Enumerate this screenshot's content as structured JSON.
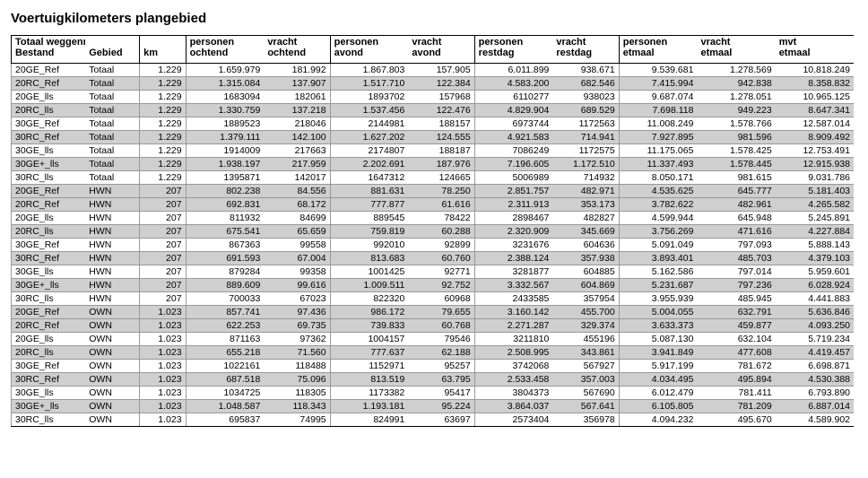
{
  "title": "Voertuigkilometers plangebied",
  "headers": {
    "bestand_top": "Totaal weggennet",
    "bestand": "Bestand",
    "gebied": "Gebied",
    "km": "km",
    "pers_ochtend": "personen ochtend",
    "vracht_ochtend": "vracht ochtend",
    "pers_avond": "personen avond",
    "vracht_avond": "vracht avond",
    "pers_restdag": "personen restdag",
    "vracht_restdag": "vracht restdag",
    "pers_etmaal": "personen etmaal",
    "vracht_etmaal": "vracht etmaal",
    "mvt_etmaal": "mvt etmaal"
  },
  "rows": [
    {
      "b": "20GE_Ref",
      "g": "Totaal",
      "km": "1.229",
      "po": "1.659.979",
      "vo": "181.992",
      "pa": "1.867.803",
      "va": "157.905",
      "pr": "6.011.899",
      "vr": "938.671",
      "pe": "9.539.681",
      "ve": "1.278.569",
      "me": "10.818.249",
      "shade": false
    },
    {
      "b": "20RC_Ref",
      "g": "Totaal",
      "km": "1.229",
      "po": "1.315.084",
      "vo": "137.907",
      "pa": "1.517.710",
      "va": "122.384",
      "pr": "4.583.200",
      "vr": "682.546",
      "pe": "7.415.994",
      "ve": "942.838",
      "me": "8.358.832",
      "shade": true
    },
    {
      "b": "20GE_lls",
      "g": "Totaal",
      "km": "1.229",
      "po": "1683094",
      "vo": "182061",
      "pa": "1893702",
      "va": "157968",
      "pr": "6110277",
      "vr": "938023",
      "pe": "9.687.074",
      "ve": "1.278.051",
      "me": "10.965.125",
      "shade": false
    },
    {
      "b": "20RC_lls",
      "g": "Totaal",
      "km": "1.229",
      "po": "1.330.759",
      "vo": "137.218",
      "pa": "1.537.456",
      "va": "122.476",
      "pr": "4.829.904",
      "vr": "689.529",
      "pe": "7.698.118",
      "ve": "949.223",
      "me": "8.647.341",
      "shade": true
    },
    {
      "b": "30GE_Ref",
      "g": "Totaal",
      "km": "1.229",
      "po": "1889523",
      "vo": "218046",
      "pa": "2144981",
      "va": "188157",
      "pr": "6973744",
      "vr": "1172563",
      "pe": "11.008.249",
      "ve": "1.578.766",
      "me": "12.587.014",
      "shade": false
    },
    {
      "b": "30RC_Ref",
      "g": "Totaal",
      "km": "1.229",
      "po": "1.379.111",
      "vo": "142.100",
      "pa": "1.627.202",
      "va": "124.555",
      "pr": "4.921.583",
      "vr": "714.941",
      "pe": "7.927.895",
      "ve": "981.596",
      "me": "8.909.492",
      "shade": true
    },
    {
      "b": "30GE_lls",
      "g": "Totaal",
      "km": "1.229",
      "po": "1914009",
      "vo": "217663",
      "pa": "2174807",
      "va": "188187",
      "pr": "7086249",
      "vr": "1172575",
      "pe": "11.175.065",
      "ve": "1.578.425",
      "me": "12.753.491",
      "shade": false
    },
    {
      "b": "30GE+_lls",
      "g": "Totaal",
      "km": "1.229",
      "po": "1.938.197",
      "vo": "217.959",
      "pa": "2.202.691",
      "va": "187.976",
      "pr": "7.196.605",
      "vr": "1.172.510",
      "pe": "11.337.493",
      "ve": "1.578.445",
      "me": "12.915.938",
      "shade": true
    },
    {
      "b": "30RC_lls",
      "g": "Totaal",
      "km": "1.229",
      "po": "1395871",
      "vo": "142017",
      "pa": "1647312",
      "va": "124665",
      "pr": "5006989",
      "vr": "714932",
      "pe": "8.050.171",
      "ve": "981.615",
      "me": "9.031.786",
      "shade": false
    },
    {
      "b": "20GE_Ref",
      "g": "HWN",
      "km": "207",
      "po": "802.238",
      "vo": "84.556",
      "pa": "881.631",
      "va": "78.250",
      "pr": "2.851.757",
      "vr": "482.971",
      "pe": "4.535.625",
      "ve": "645.777",
      "me": "5.181.403",
      "shade": true
    },
    {
      "b": "20RC_Ref",
      "g": "HWN",
      "km": "207",
      "po": "692.831",
      "vo": "68.172",
      "pa": "777.877",
      "va": "61.616",
      "pr": "2.311.913",
      "vr": "353.173",
      "pe": "3.782.622",
      "ve": "482.961",
      "me": "4.265.582",
      "shade": true
    },
    {
      "b": "20GE_lls",
      "g": "HWN",
      "km": "207",
      "po": "811932",
      "vo": "84699",
      "pa": "889545",
      "va": "78422",
      "pr": "2898467",
      "vr": "482827",
      "pe": "4.599.944",
      "ve": "645.948",
      "me": "5.245.891",
      "shade": false
    },
    {
      "b": "20RC_lls",
      "g": "HWN",
      "km": "207",
      "po": "675.541",
      "vo": "65.659",
      "pa": "759.819",
      "va": "60.288",
      "pr": "2.320.909",
      "vr": "345.669",
      "pe": "3.756.269",
      "ve": "471.616",
      "me": "4.227.884",
      "shade": true
    },
    {
      "b": "30GE_Ref",
      "g": "HWN",
      "km": "207",
      "po": "867363",
      "vo": "99558",
      "pa": "992010",
      "va": "92899",
      "pr": "3231676",
      "vr": "604636",
      "pe": "5.091.049",
      "ve": "797.093",
      "me": "5.888.143",
      "shade": false
    },
    {
      "b": "30RC_Ref",
      "g": "HWN",
      "km": "207",
      "po": "691.593",
      "vo": "67.004",
      "pa": "813.683",
      "va": "60.760",
      "pr": "2.388.124",
      "vr": "357.938",
      "pe": "3.893.401",
      "ve": "485.703",
      "me": "4.379.103",
      "shade": true
    },
    {
      "b": "30GE_lls",
      "g": "HWN",
      "km": "207",
      "po": "879284",
      "vo": "99358",
      "pa": "1001425",
      "va": "92771",
      "pr": "3281877",
      "vr": "604885",
      "pe": "5.162.586",
      "ve": "797.014",
      "me": "5.959.601",
      "shade": false
    },
    {
      "b": "30GE+_lls",
      "g": "HWN",
      "km": "207",
      "po": "889.609",
      "vo": "99.616",
      "pa": "1.009.511",
      "va": "92.752",
      "pr": "3.332.567",
      "vr": "604.869",
      "pe": "5.231.687",
      "ve": "797.236",
      "me": "6.028.924",
      "shade": true
    },
    {
      "b": "30RC_lls",
      "g": "HWN",
      "km": "207",
      "po": "700033",
      "vo": "67023",
      "pa": "822320",
      "va": "60968",
      "pr": "2433585",
      "vr": "357954",
      "pe": "3.955.939",
      "ve": "485.945",
      "me": "4.441.883",
      "shade": false
    },
    {
      "b": "20GE_Ref",
      "g": "OWN",
      "km": "1.023",
      "po": "857.741",
      "vo": "97.436",
      "pa": "986.172",
      "va": "79.655",
      "pr": "3.160.142",
      "vr": "455.700",
      "pe": "5.004.055",
      "ve": "632.791",
      "me": "5.636.846",
      "shade": true
    },
    {
      "b": "20RC_Ref",
      "g": "OWN",
      "km": "1.023",
      "po": "622.253",
      "vo": "69.735",
      "pa": "739.833",
      "va": "60.768",
      "pr": "2.271.287",
      "vr": "329.374",
      "pe": "3.633.373",
      "ve": "459.877",
      "me": "4.093.250",
      "shade": true
    },
    {
      "b": "20GE_lls",
      "g": "OWN",
      "km": "1.023",
      "po": "871163",
      "vo": "97362",
      "pa": "1004157",
      "va": "79546",
      "pr": "3211810",
      "vr": "455196",
      "pe": "5.087.130",
      "ve": "632.104",
      "me": "5.719.234",
      "shade": false
    },
    {
      "b": "20RC_lls",
      "g": "OWN",
      "km": "1.023",
      "po": "655.218",
      "vo": "71.560",
      "pa": "777.637",
      "va": "62.188",
      "pr": "2.508.995",
      "vr": "343.861",
      "pe": "3.941.849",
      "ve": "477.608",
      "me": "4.419.457",
      "shade": true
    },
    {
      "b": "30GE_Ref",
      "g": "OWN",
      "km": "1.023",
      "po": "1022161",
      "vo": "118488",
      "pa": "1152971",
      "va": "95257",
      "pr": "3742068",
      "vr": "567927",
      "pe": "5.917.199",
      "ve": "781.672",
      "me": "6.698.871",
      "shade": false
    },
    {
      "b": "30RC_Ref",
      "g": "OWN",
      "km": "1.023",
      "po": "687.518",
      "vo": "75.096",
      "pa": "813.519",
      "va": "63.795",
      "pr": "2.533.458",
      "vr": "357.003",
      "pe": "4.034.495",
      "ve": "495.894",
      "me": "4.530.388",
      "shade": true
    },
    {
      "b": "30GE_lls",
      "g": "OWN",
      "km": "1.023",
      "po": "1034725",
      "vo": "118305",
      "pa": "1173382",
      "va": "95417",
      "pr": "3804373",
      "vr": "567690",
      "pe": "6.012.479",
      "ve": "781.411",
      "me": "6.793.890",
      "shade": false
    },
    {
      "b": "30GE+_lls",
      "g": "OWN",
      "km": "1.023",
      "po": "1.048.587",
      "vo": "118.343",
      "pa": "1.193.181",
      "va": "95.224",
      "pr": "3.864.037",
      "vr": "567.641",
      "pe": "6.105.805",
      "ve": "781.209",
      "me": "6.887.014",
      "shade": true
    },
    {
      "b": "30RC_lls",
      "g": "OWN",
      "km": "1.023",
      "po": "695837",
      "vo": "74995",
      "pa": "824991",
      "va": "63697",
      "pr": "2573404",
      "vr": "356978",
      "pe": "4.094.232",
      "ve": "495.670",
      "me": "4.589.902",
      "shade": false
    }
  ]
}
